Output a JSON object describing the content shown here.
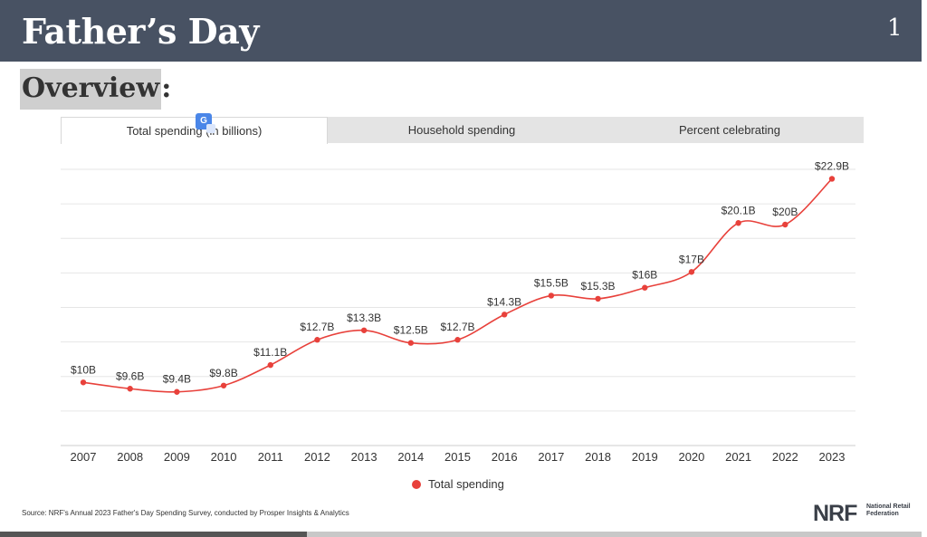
{
  "header": {
    "title": "Father’s Day",
    "page_number": "1"
  },
  "section": {
    "heading": "Overview",
    "colon": ":"
  },
  "tabs": [
    {
      "label": "Total spending (in billions)",
      "active": true
    },
    {
      "label": "Household spending",
      "active": false
    },
    {
      "label": "Percent celebrating",
      "active": false
    }
  ],
  "colors": {
    "header_bg": "#485263",
    "series": "#e8413b",
    "grid": "#e6e6e6"
  },
  "chart_data": {
    "type": "line",
    "x": [
      "2007",
      "2008",
      "2009",
      "2010",
      "2011",
      "2012",
      "2013",
      "2014",
      "2015",
      "2016",
      "2017",
      "2018",
      "2019",
      "2020",
      "2021",
      "2022",
      "2023"
    ],
    "series": [
      {
        "name": "Total spending",
        "values": [
          10,
          9.6,
          9.4,
          9.8,
          11.1,
          12.7,
          13.3,
          12.5,
          12.7,
          14.3,
          15.5,
          15.3,
          16,
          17,
          20.1,
          20,
          22.9
        ],
        "labels": [
          "$10B",
          "$9.6B",
          "$9.4B",
          "$9.8B",
          "$11.1B",
          "$12.7B",
          "$13.3B",
          "$12.5B",
          "$12.7B",
          "$14.3B",
          "$15.5B",
          "$15.3B",
          "$16B",
          "$17B",
          "$20.1B",
          "$20B",
          "$22.9B"
        ]
      }
    ],
    "ylim": [
      6,
      23.5
    ],
    "grid": true,
    "legend": "bottom"
  },
  "legend": {
    "label": "Total spending"
  },
  "footer": {
    "source": "Source: NRF's Annual 2023 Father's Day Spending Survey, conducted by Prosper Insights & Analytics",
    "logo_mark": "NRF",
    "logo_text": "National Retail Federation",
    "progress": 0.333
  }
}
